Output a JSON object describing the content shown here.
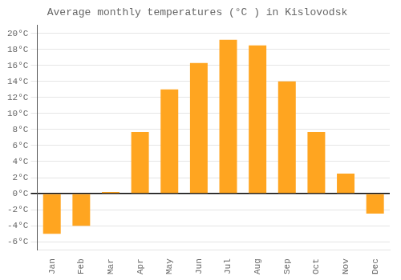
{
  "chart_data": {
    "type": "bar",
    "title": "Average monthly temperatures (°C ) in Kislovodsk",
    "categories": [
      "Jan",
      "Feb",
      "Mar",
      "Apr",
      "May",
      "Jun",
      "Jul",
      "Aug",
      "Sep",
      "Oct",
      "Nov",
      "Dec"
    ],
    "values": [
      -5.0,
      -4.0,
      0.2,
      7.7,
      13.0,
      16.3,
      19.2,
      18.5,
      14.0,
      7.7,
      2.5,
      -2.5
    ],
    "color": "#FFA520",
    "ylim": [
      -7,
      21
    ],
    "yticks": [
      {
        "value": -6,
        "label": "-6°C"
      },
      {
        "value": -4,
        "label": "-4°C"
      },
      {
        "value": -2,
        "label": "-2°C"
      },
      {
        "value": 0,
        "label": "0°C"
      },
      {
        "value": 2,
        "label": "2°C"
      },
      {
        "value": 4,
        "label": "4°C"
      },
      {
        "value": 6,
        "label": "6°C"
      },
      {
        "value": 8,
        "label": "8°C"
      },
      {
        "value": 10,
        "label": "10°C"
      },
      {
        "value": 12,
        "label": "12°C"
      },
      {
        "value": 14,
        "label": "14°C"
      },
      {
        "value": 16,
        "label": "16°C"
      },
      {
        "value": 18,
        "label": "18°C"
      },
      {
        "value": 20,
        "label": "20°C"
      }
    ],
    "grid": true
  }
}
